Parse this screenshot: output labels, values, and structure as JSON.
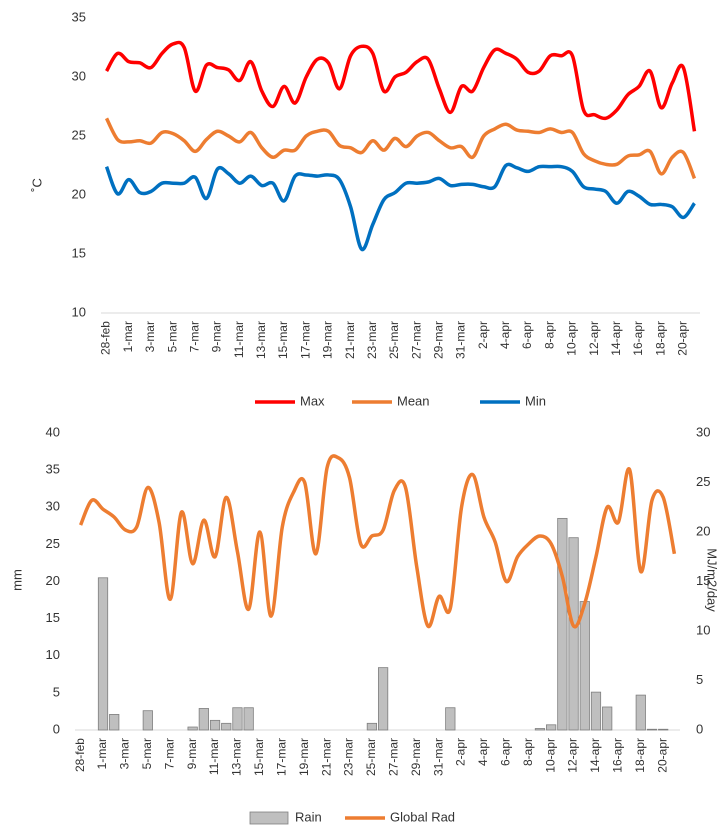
{
  "chart_data": [
    {
      "type": "line",
      "ylabel": "˚C",
      "categories": [
        "28-feb",
        null,
        "1-mar",
        null,
        "3-mar",
        null,
        "5-mar",
        null,
        "7-mar",
        null,
        "9-mar",
        null,
        "11-mar",
        null,
        "13-mar",
        null,
        "15-mar",
        null,
        "17-mar",
        null,
        "19-mar",
        null,
        "21-mar",
        null,
        "23-mar",
        null,
        "25-mar",
        null,
        "27-mar",
        null,
        "29-mar",
        null,
        "31-mar",
        null,
        "2-apr",
        null,
        "4-apr",
        null,
        "6-apr",
        null,
        "8-apr",
        null,
        "10-apr",
        null,
        "12-apr",
        null,
        "14-apr",
        null,
        "16-apr",
        null,
        "18-apr",
        null,
        "20-apr",
        null
      ],
      "ylim": [
        10,
        35
      ],
      "yticks": [
        10,
        15,
        20,
        25,
        30,
        35
      ],
      "series": [
        {
          "name": "Max",
          "color": "#ff0000",
          "values": [
            30.5,
            32,
            31.3,
            31.2,
            30.8,
            32,
            32.8,
            32.5,
            28.8,
            31,
            30.8,
            30.6,
            29.7,
            31.3,
            28.8,
            27.5,
            29.2,
            27.8,
            30,
            31.5,
            31.2,
            29,
            31.8,
            32.6,
            32,
            28.8,
            30,
            30.4,
            31.3,
            31.5,
            29,
            27,
            29.2,
            28.8,
            30.8,
            32.3,
            32,
            31.5,
            30.4,
            30.5,
            31.8,
            31.8,
            31.8,
            27.2,
            26.8,
            26.5,
            27.2,
            28.5,
            29.2,
            30.5,
            27.4,
            29.5,
            30.8,
            25.4
          ]
        },
        {
          "name": "Mean",
          "color": "#ed7d31",
          "values": [
            26.5,
            24.7,
            24.5,
            24.6,
            24.4,
            25.3,
            25.2,
            24.6,
            23.7,
            24.7,
            25.4,
            25,
            24.5,
            25.3,
            24,
            23.2,
            23.8,
            23.8,
            25,
            25.4,
            25.4,
            24.2,
            24,
            23.6,
            24.6,
            23.8,
            24.8,
            24.1,
            25,
            25.3,
            24.6,
            24,
            24.1,
            23.2,
            25,
            25.6,
            26,
            25.5,
            25.4,
            25.3,
            25.6,
            25.3,
            25.3,
            23.5,
            22.9,
            22.6,
            22.6,
            23.3,
            23.4,
            23.7,
            21.8,
            23.2,
            23.6,
            21.4
          ]
        },
        {
          "name": "Min",
          "color": "#0070c0",
          "values": [
            22.4,
            20.1,
            21.3,
            20.2,
            20.3,
            21,
            21,
            21,
            21.5,
            19.7,
            22.2,
            21.8,
            21,
            21.6,
            20.8,
            21,
            19.5,
            21.6,
            21.7,
            21.6,
            21.7,
            21.3,
            19,
            15.4,
            17.5,
            19.6,
            20.2,
            21,
            21,
            21.1,
            21.4,
            20.8,
            20.9,
            20.9,
            20.7,
            20.7,
            22.5,
            22.3,
            22,
            22.4,
            22.4,
            22.4,
            22,
            20.7,
            20.5,
            20.3,
            19.3,
            20.3,
            19.9,
            19.2,
            19.2,
            19,
            18.1,
            19.3
          ]
        }
      ]
    },
    {
      "type": "combo",
      "ylabel": "mm",
      "y2label": "MJ/m2/day",
      "categories": [
        "28-feb",
        null,
        "1-mar",
        null,
        "3-mar",
        null,
        "5-mar",
        null,
        "7-mar",
        null,
        "9-mar",
        null,
        "11-mar",
        null,
        "13-mar",
        null,
        "15-mar",
        null,
        "17-mar",
        null,
        "19-mar",
        null,
        "21-mar",
        null,
        "23-mar",
        null,
        "25-mar",
        null,
        "27-mar",
        null,
        "29-mar",
        null,
        "31-mar",
        null,
        "2-apr",
        null,
        "4-apr",
        null,
        "6-apr",
        null,
        "8-apr",
        null,
        "10-apr",
        null,
        "12-apr",
        null,
        "14-apr",
        null,
        "16-apr",
        null,
        "18-apr",
        null,
        "20-apr",
        null
      ],
      "ylim": [
        0,
        40
      ],
      "yticks": [
        0,
        5,
        10,
        15,
        20,
        25,
        30,
        35,
        40
      ],
      "y2lim": [
        0,
        30
      ],
      "y2ticks": [
        0,
        5,
        10,
        15,
        20,
        25,
        30
      ],
      "series": [
        {
          "name": "Rain",
          "type": "bar",
          "color": "#bfbfbf",
          "values": [
            0,
            0,
            20.5,
            2.1,
            0,
            0,
            2.6,
            0,
            0,
            0,
            0.4,
            2.9,
            1.3,
            0.9,
            3,
            3,
            0,
            0,
            0,
            0,
            0,
            0,
            0,
            0,
            0,
            0,
            0.9,
            8.4,
            0,
            0,
            0,
            0,
            0,
            3,
            0,
            0,
            0,
            0,
            0,
            0,
            0,
            0.2,
            0.7,
            28.5,
            25.9,
            17.3,
            5.1,
            3.1,
            0,
            0,
            4.7,
            0.1,
            0.1,
            0
          ]
        },
        {
          "name": "Global Rad",
          "type": "line",
          "axis": "y2",
          "color": "#ed7d31",
          "values": [
            20.7,
            23.2,
            22.3,
            21.5,
            20.2,
            20.5,
            24.5,
            21,
            13.2,
            22,
            16.8,
            21.2,
            17.5,
            23.5,
            18,
            12.2,
            20,
            11.5,
            20.5,
            24,
            25,
            17.8,
            26.5,
            27.5,
            25.5,
            18.8,
            19.6,
            20.2,
            24.2,
            24.5,
            16.5,
            10.5,
            13.5,
            12.3,
            22.5,
            25.8,
            21.5,
            19,
            15,
            17.5,
            18.8,
            19.6,
            18.8,
            15.5,
            10.5,
            12.8,
            17.5,
            22.5,
            21,
            26.3,
            16,
            23.2,
            23.5,
            17.8
          ]
        }
      ]
    }
  ]
}
